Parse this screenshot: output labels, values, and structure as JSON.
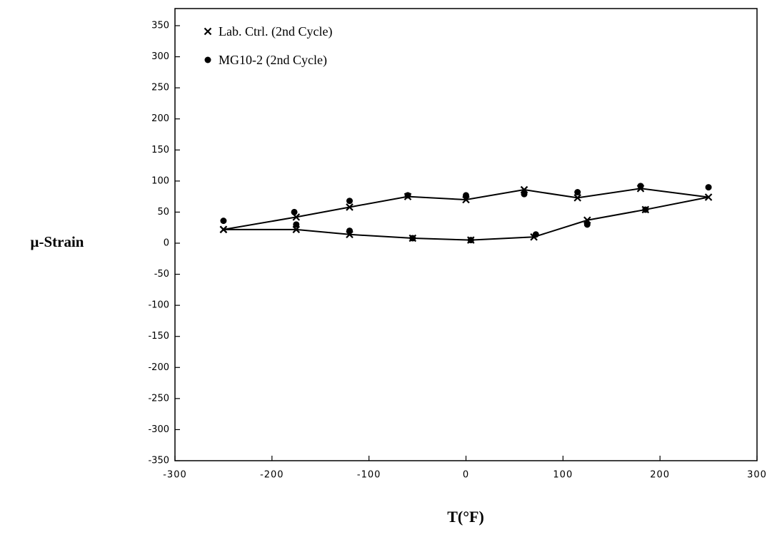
{
  "chart_data": {
    "type": "scatter",
    "xlabel": "T(°F)",
    "ylabel": "μ-Strain",
    "xlim": [
      -300,
      300
    ],
    "xticks": [
      -300,
      -200,
      -100,
      0,
      100,
      200,
      300
    ],
    "ylim": [
      -350,
      350
    ],
    "yticks": [
      -350,
      -300,
      -250,
      -200,
      -150,
      -100,
      -50,
      0,
      50,
      100,
      150,
      200,
      250,
      300,
      350
    ],
    "grid": false,
    "legend": "upper left",
    "series": [
      {
        "name": "Lab. Ctrl. (2nd Cycle)",
        "color": "#000000",
        "marker": "x",
        "line": true,
        "x": [
          -250,
          -175,
          -120,
          -60,
          0,
          60,
          115,
          180,
          250,
          185,
          125,
          70,
          5,
          -55,
          -120,
          -175,
          -250
        ],
        "values": [
          22,
          42,
          58,
          75,
          70,
          86,
          73,
          88,
          74,
          54,
          37,
          10,
          5,
          8,
          14,
          22,
          22
        ]
      },
      {
        "name": "MG10-2 (2nd Cycle)",
        "color": "#000000",
        "marker": "dot",
        "line": false,
        "x": [
          -250,
          -177,
          -120,
          -60,
          0,
          60,
          115,
          180,
          250,
          185,
          125,
          72,
          5,
          -55,
          -120,
          -175
        ],
        "values": [
          36,
          50,
          68,
          77,
          77,
          79,
          82,
          92,
          90,
          54,
          30,
          14,
          5,
          8,
          20,
          30
        ]
      }
    ]
  }
}
